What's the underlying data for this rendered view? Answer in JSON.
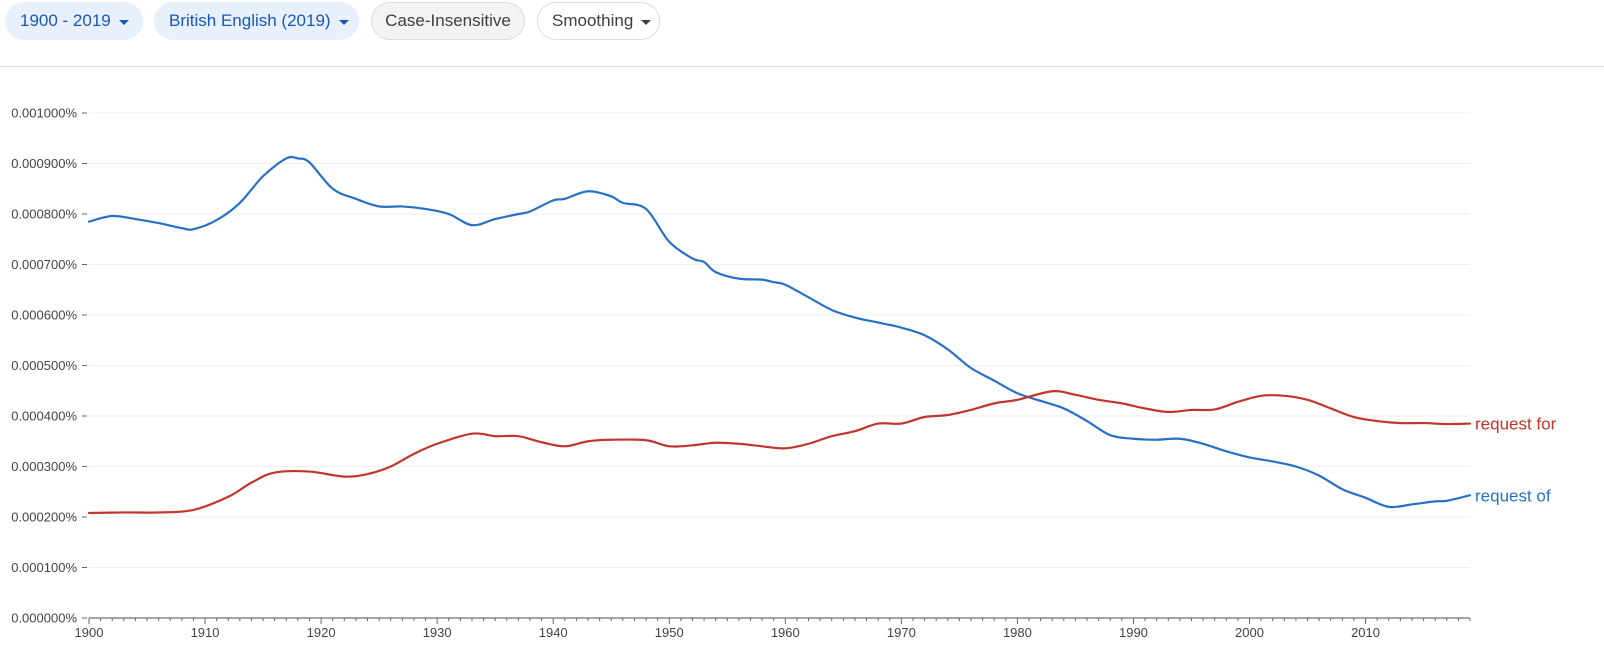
{
  "toolbar": {
    "year_range": "1900 - 2019",
    "corpus": "British English (2019)",
    "case_option": "Case-Insensitive",
    "smoothing": "Smoothing"
  },
  "colors": {
    "chip_blue_bg": "#e8f0fe",
    "chip_blue_text": "#1a57b8",
    "series_of": "#2770c6",
    "series_for": "#c0362c",
    "gridline": "#eeeeee",
    "axis": "#888888"
  },
  "chart_data": {
    "type": "line",
    "title": "",
    "xlabel": "",
    "ylabel": "",
    "xlim": [
      1900,
      2019
    ],
    "ylim": [
      0,
      0.001
    ],
    "grid": true,
    "y_ticks": [
      {
        "value": 0.0,
        "label": "0.000000%"
      },
      {
        "value": 0.0001,
        "label": "0.000100%"
      },
      {
        "value": 0.0002,
        "label": "0.000200%"
      },
      {
        "value": 0.0003,
        "label": "0.000300%"
      },
      {
        "value": 0.0004,
        "label": "0.000400%"
      },
      {
        "value": 0.0005,
        "label": "0.000500%"
      },
      {
        "value": 0.0006,
        "label": "0.000600%"
      },
      {
        "value": 0.0007,
        "label": "0.000700%"
      },
      {
        "value": 0.0008,
        "label": "0.000800%"
      },
      {
        "value": 0.0009,
        "label": "0.000900%"
      },
      {
        "value": 0.001,
        "label": "0.001000%"
      }
    ],
    "x_ticks": [
      {
        "value": 1900,
        "label": "1900"
      },
      {
        "value": 1910,
        "label": "1910"
      },
      {
        "value": 1920,
        "label": "1920"
      },
      {
        "value": 1930,
        "label": "1930"
      },
      {
        "value": 1940,
        "label": "1940"
      },
      {
        "value": 1950,
        "label": "1950"
      },
      {
        "value": 1960,
        "label": "1960"
      },
      {
        "value": 1970,
        "label": "1970"
      },
      {
        "value": 1980,
        "label": "1980"
      },
      {
        "value": 1990,
        "label": "1990"
      },
      {
        "value": 2000,
        "label": "2000"
      },
      {
        "value": 2010,
        "label": "2010"
      }
    ],
    "series": [
      {
        "name": "request of",
        "color": "#2770c6",
        "x": [
          1900,
          1902,
          1904,
          1906,
          1908,
          1909,
          1911,
          1913,
          1915,
          1917,
          1918,
          1919,
          1921,
          1923,
          1925,
          1927,
          1929,
          1931,
          1933,
          1935,
          1937,
          1938,
          1940,
          1941,
          1943,
          1945,
          1946,
          1948,
          1950,
          1952,
          1953,
          1954,
          1956,
          1958,
          1959,
          1960,
          1962,
          1964,
          1966,
          1968,
          1970,
          1972,
          1974,
          1976,
          1978,
          1980,
          1982,
          1984,
          1986,
          1988,
          1990,
          1992,
          1994,
          1996,
          1998,
          2000,
          2002,
          2004,
          2006,
          2008,
          2010,
          2012,
          2014,
          2016,
          2017,
          2019
        ],
        "values": [
          0.000785,
          0.000796,
          0.00079,
          0.000782,
          0.000772,
          0.00077,
          0.000788,
          0.000822,
          0.000875,
          0.00091,
          0.00091,
          0.000902,
          0.00085,
          0.00083,
          0.000815,
          0.000815,
          0.00081,
          0.0008,
          0.000778,
          0.00079,
          0.0008,
          0.000805,
          0.000827,
          0.00083,
          0.000845,
          0.000835,
          0.000822,
          0.00081,
          0.000745,
          0.000712,
          0.000705,
          0.000685,
          0.000672,
          0.00067,
          0.000665,
          0.00066,
          0.000635,
          0.00061,
          0.000595,
          0.000585,
          0.000575,
          0.00056,
          0.000532,
          0.000495,
          0.00047,
          0.000445,
          0.00043,
          0.000415,
          0.00039,
          0.000362,
          0.000355,
          0.000353,
          0.000355,
          0.000345,
          0.00033,
          0.000318,
          0.00031,
          0.0003,
          0.000282,
          0.000255,
          0.000238,
          0.00022,
          0.000225,
          0.000231,
          0.000232,
          0.000243
        ]
      },
      {
        "name": "request for",
        "color": "#c0362c",
        "x": [
          1900,
          1903,
          1906,
          1909,
          1912,
          1914,
          1916,
          1919,
          1922,
          1924,
          1926,
          1928,
          1930,
          1933,
          1935,
          1937,
          1939,
          1941,
          1943,
          1945,
          1948,
          1950,
          1952,
          1954,
          1956,
          1958,
          1960,
          1962,
          1964,
          1966,
          1968,
          1970,
          1972,
          1974,
          1976,
          1978,
          1980,
          1983,
          1985,
          1987,
          1989,
          1991,
          1993,
          1995,
          1997,
          1999,
          2001,
          2003,
          2005,
          2007,
          2009,
          2011,
          2013,
          2015,
          2017,
          2019
        ],
        "values": [
          0.000208,
          0.000209,
          0.000209,
          0.000214,
          0.00024,
          0.000268,
          0.000288,
          0.00029,
          0.00028,
          0.000285,
          0.0003,
          0.000325,
          0.000345,
          0.000365,
          0.00036,
          0.00036,
          0.000348,
          0.00034,
          0.00035,
          0.000353,
          0.000352,
          0.00034,
          0.000342,
          0.000347,
          0.000345,
          0.00034,
          0.000336,
          0.000345,
          0.00036,
          0.00037,
          0.000385,
          0.000385,
          0.000398,
          0.000402,
          0.000412,
          0.000425,
          0.000432,
          0.000449,
          0.000442,
          0.000432,
          0.000425,
          0.000415,
          0.000408,
          0.000412,
          0.000413,
          0.000428,
          0.00044,
          0.00044,
          0.000432,
          0.000415,
          0.000398,
          0.00039,
          0.000386,
          0.000386,
          0.000384,
          0.000385
        ]
      }
    ]
  }
}
